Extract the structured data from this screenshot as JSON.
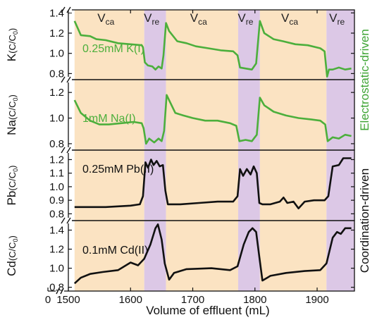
{
  "chart_data": {
    "type": "line",
    "xlabel": "Volume of effluent (mL)",
    "xlim": [
      1500,
      1960
    ],
    "x_ticks": [
      "0",
      "1500",
      "1600",
      "1700",
      "1800",
      "1900"
    ],
    "x_tick_values": [
      1500,
      1600,
      1700,
      1800,
      1900
    ],
    "x_origin_tick_label": "0",
    "axis_break": true,
    "grid": false,
    "band_colors": {
      "ca": "#fbe3c2",
      "re": "#dcc8e6"
    },
    "regions": [
      {
        "phase": "ca",
        "label": "V",
        "sub": "ca",
        "x0": 1510,
        "x1": 1622
      },
      {
        "phase": "re",
        "label": "V",
        "sub": "re",
        "x0": 1622,
        "x1": 1657
      },
      {
        "phase": "ca",
        "label": "V",
        "sub": "ca",
        "x0": 1657,
        "x1": 1773
      },
      {
        "phase": "re",
        "label": "V",
        "sub": "re",
        "x0": 1773,
        "x1": 1808
      },
      {
        "phase": "ca",
        "label": "V",
        "sub": "ca",
        "x0": 1808,
        "x1": 1915
      },
      {
        "phase": "re",
        "label": "V",
        "sub": "re",
        "x0": 1915,
        "x1": 1960
      }
    ],
    "side_labels": [
      {
        "text": "Electrostatic-driven",
        "color": "#3fa535",
        "panels": [
          0,
          1
        ]
      },
      {
        "text": "Coordination-driven",
        "color": "#111111",
        "panels": [
          2,
          3
        ]
      }
    ],
    "panels": [
      {
        "ylabel_main": "K",
        "ylabel_unit": "(C/C",
        "ylabel_sub": "0",
        "ylabel_close": ")",
        "ylim": [
          0.74,
          1.43
        ],
        "yticks": [
          "0.8",
          "1.0",
          "1.2",
          "1.4"
        ],
        "ytick_values": [
          0.8,
          1.0,
          1.2,
          1.4
        ],
        "series_label": "0.25mM K(I)",
        "color": "#4caf3c",
        "series": [
          {
            "x": 1510,
            "y": 1.32
          },
          {
            "x": 1520,
            "y": 1.18
          },
          {
            "x": 1535,
            "y": 1.17
          },
          {
            "x": 1545,
            "y": 1.14
          },
          {
            "x": 1560,
            "y": 1.13
          },
          {
            "x": 1580,
            "y": 1.1
          },
          {
            "x": 1600,
            "y": 1.09
          },
          {
            "x": 1618,
            "y": 1.08
          },
          {
            "x": 1620,
            "y": 1.06
          },
          {
            "x": 1623,
            "y": 0.91
          },
          {
            "x": 1628,
            "y": 0.88
          },
          {
            "x": 1635,
            "y": 0.87
          },
          {
            "x": 1640,
            "y": 0.84
          },
          {
            "x": 1645,
            "y": 0.87
          },
          {
            "x": 1650,
            "y": 0.85
          },
          {
            "x": 1653,
            "y": 0.98
          },
          {
            "x": 1657,
            "y": 1.3
          },
          {
            "x": 1662,
            "y": 1.22
          },
          {
            "x": 1675,
            "y": 1.12
          },
          {
            "x": 1690,
            "y": 1.1
          },
          {
            "x": 1705,
            "y": 1.07
          },
          {
            "x": 1725,
            "y": 1.05
          },
          {
            "x": 1745,
            "y": 1.03
          },
          {
            "x": 1765,
            "y": 1.02
          },
          {
            "x": 1772,
            "y": 0.98
          },
          {
            "x": 1776,
            "y": 0.86
          },
          {
            "x": 1785,
            "y": 0.85
          },
          {
            "x": 1795,
            "y": 0.84
          },
          {
            "x": 1802,
            "y": 0.9
          },
          {
            "x": 1808,
            "y": 1.32
          },
          {
            "x": 1815,
            "y": 1.2
          },
          {
            "x": 1830,
            "y": 1.14
          },
          {
            "x": 1845,
            "y": 1.12
          },
          {
            "x": 1865,
            "y": 1.09
          },
          {
            "x": 1885,
            "y": 1.08
          },
          {
            "x": 1905,
            "y": 1.05
          },
          {
            "x": 1912,
            "y": 1.02
          },
          {
            "x": 1916,
            "y": 0.77
          },
          {
            "x": 1919,
            "y": 0.84
          },
          {
            "x": 1925,
            "y": 0.84
          },
          {
            "x": 1935,
            "y": 0.86
          },
          {
            "x": 1945,
            "y": 0.84
          },
          {
            "x": 1955,
            "y": 0.85
          }
        ]
      },
      {
        "ylabel_main": "Na",
        "ylabel_unit": "(C/C",
        "ylabel_sub": "0",
        "ylabel_close": ")",
        "ylim": [
          0.75,
          1.3
        ],
        "yticks": [
          "0.8",
          "1.0",
          "1.2"
        ],
        "ytick_values": [
          0.8,
          1.0,
          1.2
        ],
        "series_label": "1mM Na(I)",
        "color": "#4caf3c",
        "series": [
          {
            "x": 1510,
            "y": 1.14
          },
          {
            "x": 1520,
            "y": 1.04
          },
          {
            "x": 1535,
            "y": 0.98
          },
          {
            "x": 1550,
            "y": 0.95
          },
          {
            "x": 1565,
            "y": 0.95
          },
          {
            "x": 1585,
            "y": 0.96
          },
          {
            "x": 1605,
            "y": 0.97
          },
          {
            "x": 1618,
            "y": 0.96
          },
          {
            "x": 1621,
            "y": 0.92
          },
          {
            "x": 1625,
            "y": 0.8
          },
          {
            "x": 1630,
            "y": 0.84
          },
          {
            "x": 1638,
            "y": 0.81
          },
          {
            "x": 1645,
            "y": 0.84
          },
          {
            "x": 1650,
            "y": 0.82
          },
          {
            "x": 1654,
            "y": 0.9
          },
          {
            "x": 1658,
            "y": 1.18
          },
          {
            "x": 1664,
            "y": 1.12
          },
          {
            "x": 1672,
            "y": 1.04
          },
          {
            "x": 1685,
            "y": 1.02
          },
          {
            "x": 1700,
            "y": 1.0
          },
          {
            "x": 1720,
            "y": 0.98
          },
          {
            "x": 1740,
            "y": 0.98
          },
          {
            "x": 1760,
            "y": 0.96
          },
          {
            "x": 1770,
            "y": 0.94
          },
          {
            "x": 1775,
            "y": 0.82
          },
          {
            "x": 1785,
            "y": 0.83
          },
          {
            "x": 1795,
            "y": 0.82
          },
          {
            "x": 1803,
            "y": 0.87
          },
          {
            "x": 1808,
            "y": 1.16
          },
          {
            "x": 1815,
            "y": 1.1
          },
          {
            "x": 1830,
            "y": 1.05
          },
          {
            "x": 1850,
            "y": 1.02
          },
          {
            "x": 1870,
            "y": 1.0
          },
          {
            "x": 1890,
            "y": 0.99
          },
          {
            "x": 1905,
            "y": 0.98
          },
          {
            "x": 1913,
            "y": 0.95
          },
          {
            "x": 1917,
            "y": 0.82
          },
          {
            "x": 1925,
            "y": 0.85
          },
          {
            "x": 1935,
            "y": 0.84
          },
          {
            "x": 1945,
            "y": 0.87
          },
          {
            "x": 1955,
            "y": 0.86
          }
        ]
      },
      {
        "ylabel_main": "Pb",
        "ylabel_unit": "(C/C",
        "ylabel_sub": "0",
        "ylabel_close": ")",
        "ylim": [
          0.75,
          1.27
        ],
        "yticks": [
          "0.8",
          "0.9",
          "1.0",
          "1.1",
          "1.2"
        ],
        "ytick_values": [
          0.8,
          0.9,
          1.0,
          1.1,
          1.2
        ],
        "series_label": "0.25mM Pb(II)",
        "color": "#111111",
        "series": [
          {
            "x": 1510,
            "y": 0.85
          },
          {
            "x": 1560,
            "y": 0.85
          },
          {
            "x": 1600,
            "y": 0.86
          },
          {
            "x": 1615,
            "y": 0.87
          },
          {
            "x": 1620,
            "y": 0.93
          },
          {
            "x": 1624,
            "y": 1.18
          },
          {
            "x": 1628,
            "y": 1.14
          },
          {
            "x": 1633,
            "y": 1.2
          },
          {
            "x": 1637,
            "y": 1.16
          },
          {
            "x": 1642,
            "y": 1.19
          },
          {
            "x": 1647,
            "y": 1.15
          },
          {
            "x": 1652,
            "y": 1.16
          },
          {
            "x": 1656,
            "y": 0.97
          },
          {
            "x": 1660,
            "y": 0.87
          },
          {
            "x": 1680,
            "y": 0.87
          },
          {
            "x": 1710,
            "y": 0.88
          },
          {
            "x": 1740,
            "y": 0.89
          },
          {
            "x": 1765,
            "y": 0.89
          },
          {
            "x": 1772,
            "y": 0.93
          },
          {
            "x": 1776,
            "y": 1.13
          },
          {
            "x": 1781,
            "y": 1.08
          },
          {
            "x": 1787,
            "y": 1.13
          },
          {
            "x": 1793,
            "y": 1.09
          },
          {
            "x": 1798,
            "y": 1.15
          },
          {
            "x": 1803,
            "y": 1.1
          },
          {
            "x": 1807,
            "y": 0.88
          },
          {
            "x": 1812,
            "y": 0.87
          },
          {
            "x": 1825,
            "y": 0.87
          },
          {
            "x": 1840,
            "y": 0.89
          },
          {
            "x": 1846,
            "y": 0.92
          },
          {
            "x": 1852,
            "y": 0.88
          },
          {
            "x": 1862,
            "y": 0.89
          },
          {
            "x": 1870,
            "y": 0.84
          },
          {
            "x": 1880,
            "y": 0.89
          },
          {
            "x": 1895,
            "y": 0.9
          },
          {
            "x": 1912,
            "y": 0.9
          },
          {
            "x": 1918,
            "y": 0.93
          },
          {
            "x": 1925,
            "y": 1.15
          },
          {
            "x": 1935,
            "y": 1.16
          },
          {
            "x": 1942,
            "y": 1.21
          },
          {
            "x": 1955,
            "y": 1.21
          }
        ]
      },
      {
        "ylabel_main": "Cd",
        "ylabel_unit": "(C/C",
        "ylabel_sub": "0",
        "ylabel_close": ")",
        "ylim": [
          0.76,
          1.5
        ],
        "yticks": [
          "0.8",
          "1.0",
          "1.2",
          "1.4"
        ],
        "ytick_values": [
          0.8,
          1.0,
          1.2,
          1.4
        ],
        "series_label": "0.1mM Cd(II)",
        "color": "#111111",
        "series": [
          {
            "x": 1510,
            "y": 0.84
          },
          {
            "x": 1520,
            "y": 0.9
          },
          {
            "x": 1535,
            "y": 0.94
          },
          {
            "x": 1555,
            "y": 0.96
          },
          {
            "x": 1580,
            "y": 0.98
          },
          {
            "x": 1600,
            "y": 1.06
          },
          {
            "x": 1612,
            "y": 1.03
          },
          {
            "x": 1622,
            "y": 1.1
          },
          {
            "x": 1632,
            "y": 1.25
          },
          {
            "x": 1640,
            "y": 1.42
          },
          {
            "x": 1644,
            "y": 1.46
          },
          {
            "x": 1650,
            "y": 1.3
          },
          {
            "x": 1655,
            "y": 1.05
          },
          {
            "x": 1662,
            "y": 0.88
          },
          {
            "x": 1670,
            "y": 0.95
          },
          {
            "x": 1690,
            "y": 0.99
          },
          {
            "x": 1730,
            "y": 1.0
          },
          {
            "x": 1760,
            "y": 0.98
          },
          {
            "x": 1772,
            "y": 1.02
          },
          {
            "x": 1782,
            "y": 1.25
          },
          {
            "x": 1790,
            "y": 1.38
          },
          {
            "x": 1796,
            "y": 1.42
          },
          {
            "x": 1802,
            "y": 1.38
          },
          {
            "x": 1807,
            "y": 1.12
          },
          {
            "x": 1812,
            "y": 0.87
          },
          {
            "x": 1825,
            "y": 0.92
          },
          {
            "x": 1850,
            "y": 0.95
          },
          {
            "x": 1880,
            "y": 0.97
          },
          {
            "x": 1905,
            "y": 0.98
          },
          {
            "x": 1915,
            "y": 1.05
          },
          {
            "x": 1925,
            "y": 1.32
          },
          {
            "x": 1932,
            "y": 1.38
          },
          {
            "x": 1938,
            "y": 1.36
          },
          {
            "x": 1945,
            "y": 1.42
          },
          {
            "x": 1955,
            "y": 1.42
          }
        ]
      }
    ]
  }
}
